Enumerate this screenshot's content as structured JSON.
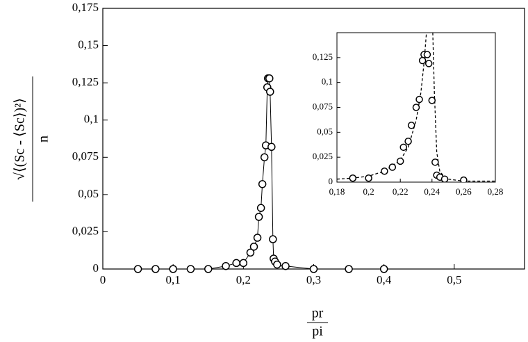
{
  "chart_data": {
    "type": "scatter",
    "ylabel_numerator": "√⟨(Sc - ⟨Sc⟩)²⟩",
    "ylabel_denominator": "n",
    "xlabel_numerator": "pr",
    "xlabel_denominator": "pi",
    "xlim": [
      0,
      0.6
    ],
    "ylim": [
      0,
      0.175
    ],
    "xticks": [
      0,
      {
        "value": 0.1,
        "label": "0,1"
      },
      {
        "value": 0.2,
        "label": "0,2"
      },
      {
        "value": 0.3,
        "label": "0,3"
      },
      {
        "value": 0.4,
        "label": "0,4"
      },
      {
        "value": 0.5,
        "label": "0,5"
      }
    ],
    "yticks": [
      0,
      {
        "value": 0.025,
        "label": "0,025"
      },
      {
        "value": 0.05,
        "label": "0,05"
      },
      {
        "value": 0.075,
        "label": "0,075"
      },
      {
        "value": 0.1,
        "label": "0,1"
      },
      {
        "value": 0.125,
        "label": "0,125"
      },
      {
        "value": 0.15,
        "label": "0,15"
      },
      {
        "value": 0.175,
        "label": "0,175"
      }
    ],
    "connect": true,
    "color": "#000000",
    "series": [
      {
        "x": [
          0.05,
          0.075,
          0.1,
          0.125,
          0.15,
          0.175,
          0.19,
          0.2,
          0.21,
          0.215,
          0.22,
          0.222,
          0.225,
          0.227,
          0.23,
          0.232,
          0.234,
          0.235,
          0.237,
          0.238,
          0.24,
          0.242,
          0.243,
          0.245,
          0.248,
          0.26,
          0.3,
          0.35,
          0.4
        ],
        "values": [
          0,
          0,
          0,
          0,
          0,
          0.002,
          0.004,
          0.004,
          0.011,
          0.015,
          0.021,
          0.035,
          0.041,
          0.057,
          0.075,
          0.083,
          0.122,
          0.128,
          0.128,
          0.119,
          0.082,
          0.02,
          0.007,
          0.005,
          0.003,
          0.002,
          0,
          0,
          0
        ]
      }
    ],
    "inset": {
      "xlim": [
        0.18,
        0.28
      ],
      "ylim": [
        0,
        0.15
      ],
      "xticks": [
        {
          "value": 0.18,
          "label": "0,18"
        },
        {
          "value": 0.2,
          "label": "0,2"
        },
        {
          "value": 0.22,
          "label": "0,22"
        },
        {
          "value": 0.24,
          "label": "0,24"
        },
        {
          "value": 0.26,
          "label": "0,26"
        },
        {
          "value": 0.28,
          "label": "0,28"
        }
      ],
      "yticks": [
        0,
        {
          "value": 0.025,
          "label": "0,025"
        },
        {
          "value": 0.05,
          "label": "0,05"
        },
        {
          "value": 0.075,
          "label": "0,075"
        },
        {
          "value": 0.1,
          "label": "0,1"
        },
        {
          "value": 0.125,
          "label": "0,125"
        }
      ],
      "fit": {
        "x": [
          0.18,
          0.19,
          0.2,
          0.21,
          0.22,
          0.225,
          0.23,
          0.233,
          0.235,
          0.2365,
          null,
          0.2405,
          0.2415,
          0.243,
          0.245,
          0.25,
          0.26,
          0.28
        ],
        "values": [
          0.003,
          0.004,
          0.006,
          0.011,
          0.022,
          0.035,
          0.062,
          0.09,
          0.12,
          0.15,
          null,
          0.15,
          0.09,
          0.03,
          0.01,
          0.003,
          0.001,
          0.001
        ]
      }
    }
  }
}
